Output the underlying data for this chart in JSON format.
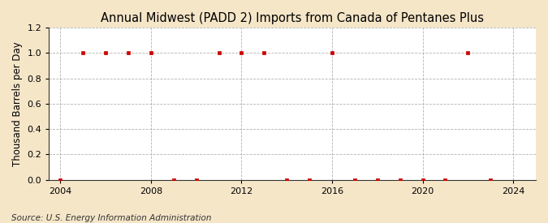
{
  "title": "Annual Midwest (PADD 2) Imports from Canada of Pentanes Plus",
  "ylabel": "Thousand Barrels per Day",
  "source": "Source: U.S. Energy Information Administration",
  "background_color": "#f5e6c8",
  "plot_bg_color": "#ffffff",
  "xlim": [
    2003.5,
    2025
  ],
  "ylim": [
    0.0,
    1.2
  ],
  "yticks": [
    0.0,
    0.2,
    0.4,
    0.6,
    0.8,
    1.0,
    1.2
  ],
  "xticks": [
    2004,
    2008,
    2012,
    2016,
    2020,
    2024
  ],
  "years": [
    2004,
    2005,
    2006,
    2007,
    2008,
    2009,
    2010,
    2011,
    2012,
    2013,
    2014,
    2015,
    2016,
    2017,
    2018,
    2019,
    2020,
    2021,
    2022,
    2023
  ],
  "values": [
    0.0,
    1.0,
    1.0,
    1.0,
    1.0,
    0.0,
    0.0,
    1.0,
    1.0,
    1.0,
    0.0,
    0.0,
    1.0,
    0.0,
    0.0,
    0.0,
    0.0,
    0.0,
    1.0,
    0.0
  ],
  "marker_color": "#cc0000",
  "marker": "s",
  "marker_size": 3.5,
  "grid_color": "#aaaaaa",
  "grid_style": "--",
  "title_fontsize": 10.5,
  "label_fontsize": 8.5,
  "tick_fontsize": 8,
  "source_fontsize": 7.5
}
